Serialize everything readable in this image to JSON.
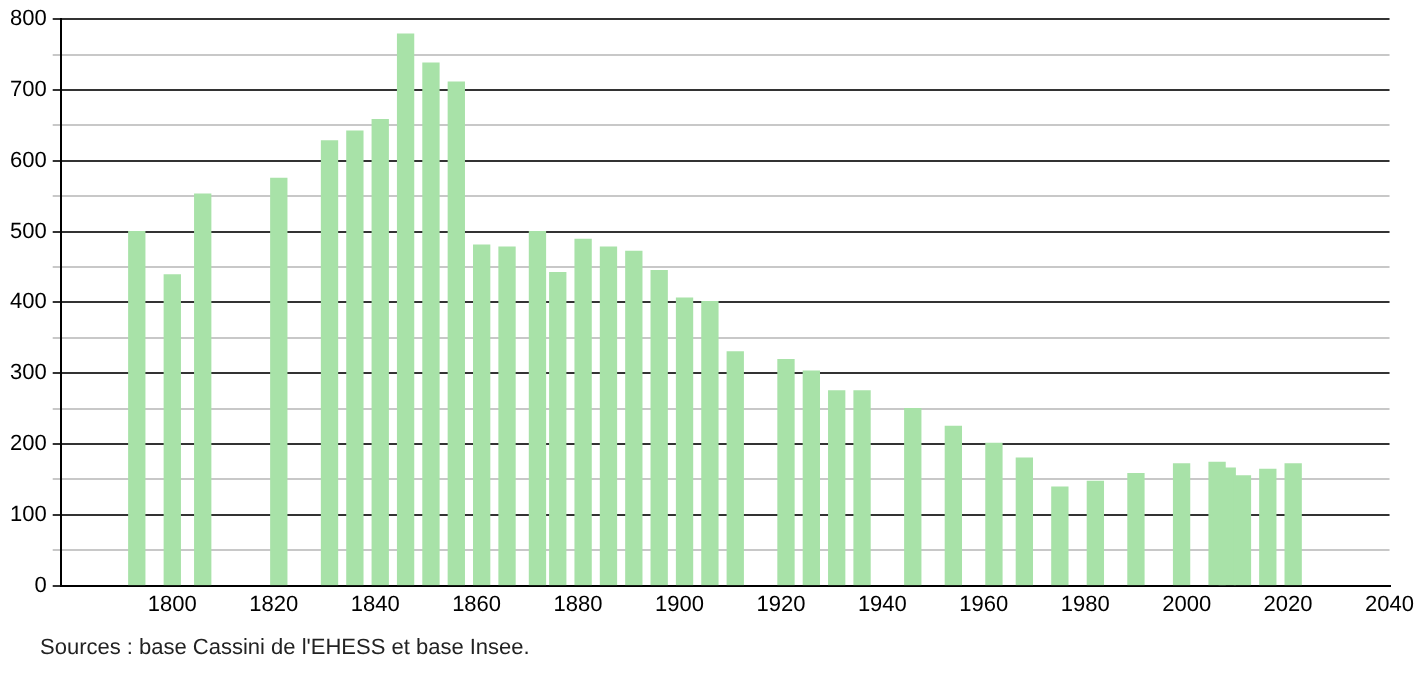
{
  "chart_data": {
    "type": "bar",
    "x": [
      1793,
      1800,
      1806,
      1821,
      1831,
      1836,
      1841,
      1846,
      1851,
      1856,
      1861,
      1866,
      1872,
      1876,
      1881,
      1886,
      1891,
      1896,
      1901,
      1906,
      1911,
      1921,
      1926,
      1931,
      1936,
      1946,
      1954,
      1962,
      1968,
      1975,
      1982,
      1990,
      1999,
      2006,
      2008,
      2011,
      2016,
      2021
    ],
    "values": [
      500,
      439,
      553,
      575,
      628,
      642,
      658,
      779,
      738,
      711,
      481,
      478,
      500,
      442,
      489,
      478,
      472,
      445,
      406,
      401,
      330,
      319,
      303,
      275,
      275,
      250,
      225,
      201,
      180,
      139,
      147,
      158,
      172,
      174,
      166,
      155,
      164,
      172
    ],
    "color": "#a8e2a8",
    "xlim": [
      1778,
      2040
    ],
    "xticks": [
      1800,
      1820,
      1840,
      1860,
      1880,
      1900,
      1920,
      1940,
      1960,
      1980,
      2000,
      2020,
      2040
    ],
    "ylim": [
      0,
      800
    ],
    "yticks": [
      0,
      {
        "value": 50,
        "label": null
      },
      100,
      {
        "value": 150,
        "label": null
      },
      200,
      {
        "value": 250,
        "label": null
      },
      300,
      {
        "value": 350,
        "label": null
      },
      400,
      {
        "value": 450,
        "label": null
      },
      500,
      {
        "value": 550,
        "label": null
      },
      600,
      {
        "value": 650,
        "label": null
      },
      700,
      {
        "value": 750,
        "label": null
      },
      800
    ],
    "grid": "y",
    "legend": false,
    "annotations": [
      "Sources : base Cassini de l'EHESS et base Insee."
    ]
  }
}
